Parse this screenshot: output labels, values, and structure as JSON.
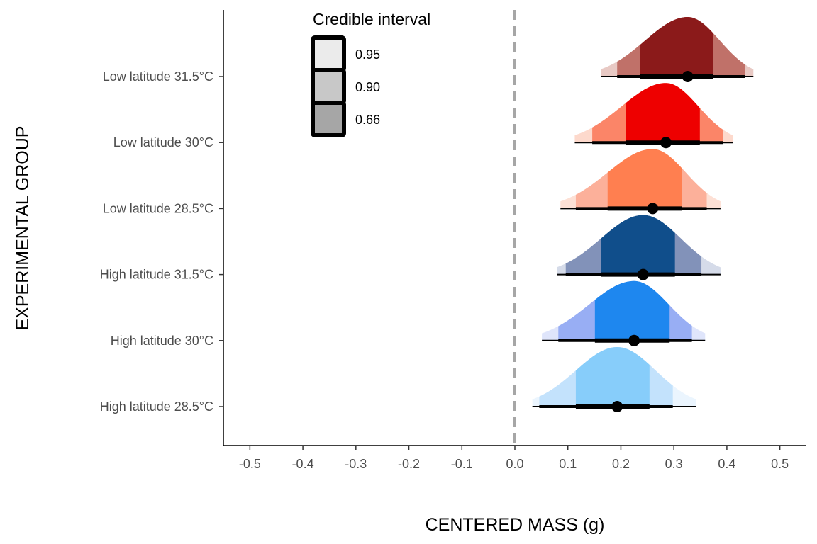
{
  "chart_data": {
    "type": "area",
    "xlabel": "CENTERED MASS (g)",
    "ylabel": "EXPERIMENTAL GROUP",
    "xlim": [
      -0.55,
      0.55
    ],
    "x_ticks": [
      "-0.5",
      "-0.4",
      "-0.3",
      "-0.2",
      "-0.1",
      "0.0",
      "0.1",
      "0.2",
      "0.3",
      "0.4",
      "0.5"
    ],
    "reference_line": {
      "x": 0.0,
      "style": "dashed",
      "color": "#a6a6a6"
    },
    "grid": false,
    "legend": {
      "title": "Credible interval",
      "placement": "top-left",
      "entries": [
        {
          "label": "0.95",
          "fill": "#ebebeb"
        },
        {
          "label": "0.90",
          "fill": "#c8c8c8"
        },
        {
          "label": "0.66",
          "fill": "#a6a6a6"
        }
      ]
    },
    "series": [
      {
        "name": "Low latitude 31.5°C",
        "color_full": "#8b1a1a",
        "color_90": "#c07169",
        "color_95": "#e8c9c4",
        "mode": 0.326,
        "point": 0.326,
        "ci66": [
          0.236,
          0.374
        ],
        "ci90": [
          0.193,
          0.434
        ],
        "ci95": [
          0.162,
          0.45
        ]
      },
      {
        "name": "Low latitude 30°C",
        "color_full": "#ee0000",
        "color_90": "#fb8568",
        "color_95": "#fdd9cc",
        "mode": 0.285,
        "point": 0.285,
        "ci66": [
          0.209,
          0.349
        ],
        "ci90": [
          0.146,
          0.393
        ],
        "ci95": [
          0.113,
          0.411
        ]
      },
      {
        "name": "Low latitude 28.5°C",
        "color_full": "#ff7f50",
        "color_90": "#fcb09a",
        "color_95": "#fde0d5",
        "mode": 0.26,
        "point": 0.26,
        "ci66": [
          0.175,
          0.315
        ],
        "ci90": [
          0.115,
          0.362
        ],
        "ci95": [
          0.086,
          0.388
        ]
      },
      {
        "name": "High latitude 31.5°C",
        "color_full": "#104e8b",
        "color_90": "#8292b9",
        "color_95": "#d5dbe9",
        "mode": 0.242,
        "point": 0.242,
        "ci66": [
          0.162,
          0.302
        ],
        "ci90": [
          0.096,
          0.352
        ],
        "ci95": [
          0.079,
          0.388
        ]
      },
      {
        "name": "High latitude 30°C",
        "color_full": "#1e87ef",
        "color_90": "#98aef4",
        "color_95": "#dfe5fb",
        "mode": 0.225,
        "point": 0.225,
        "ci66": [
          0.151,
          0.292
        ],
        "ci90": [
          0.082,
          0.334
        ],
        "ci95": [
          0.051,
          0.359
        ]
      },
      {
        "name": "High latitude 28.5°C",
        "color_full": "#87cdfa",
        "color_90": "#c3e2fc",
        "color_95": "#ebf5fe",
        "mode": 0.193,
        "point": 0.193,
        "ci66": [
          0.115,
          0.254
        ],
        "ci90": [
          0.046,
          0.298
        ],
        "ci95": [
          0.033,
          0.342
        ]
      }
    ]
  }
}
